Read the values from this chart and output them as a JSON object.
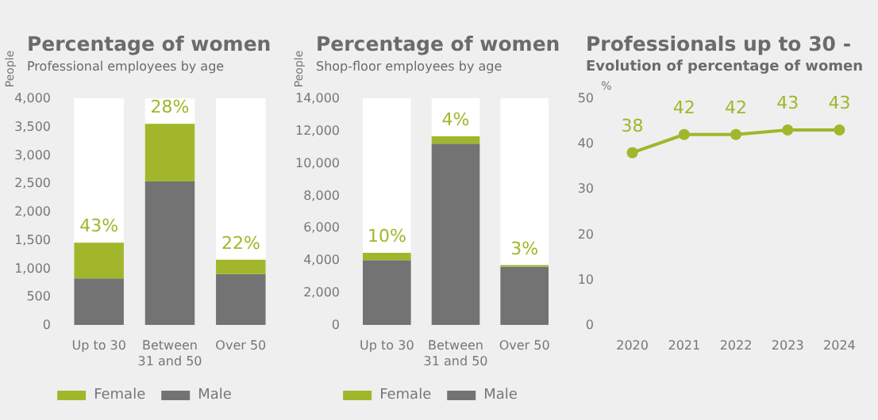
{
  "chart_data": [
    {
      "type": "bar",
      "title": "Percentage of women",
      "subtitle": "Professional employees by age",
      "ylabel": "People",
      "categories": [
        "Up to 30",
        "Between\n31 and 50",
        "Over 50"
      ],
      "stacked": true,
      "series": [
        {
          "name": "Male",
          "color": "#737373",
          "values": [
            820,
            2530,
            900
          ]
        },
        {
          "name": "Female",
          "color": "#a2b62b",
          "values": [
            630,
            1020,
            250
          ]
        }
      ],
      "ylim": [
        0,
        4000
      ],
      "yticks": [
        0,
        500,
        {
          "value": 1000,
          "label": "1,000"
        },
        {
          "value": 1500,
          "label": "1,500"
        },
        {
          "value": 2000,
          "label": "2,000"
        },
        {
          "value": 2500,
          "label": "2,500"
        },
        {
          "value": 3000,
          "label": "3,000"
        },
        {
          "value": 3500,
          "label": "3,500"
        },
        {
          "value": 4000,
          "label": "4,000"
        }
      ],
      "annotations": [
        {
          "text": "43%",
          "x": "Up to 30",
          "y": 1450
        },
        {
          "text": "28%",
          "x": "Between\n31 and 50",
          "y": 3550
        },
        {
          "text": "22%",
          "x": "Over 50",
          "y": 1150
        }
      ],
      "legend": "bottom",
      "grid": false
    },
    {
      "type": "bar",
      "title": "Percentage of women",
      "subtitle": "Shop-floor employees by age",
      "ylabel": "People",
      "categories": [
        "Up to 30",
        "Between\n31 and 50",
        "Over 50"
      ],
      "stacked": true,
      "series": [
        {
          "name": "Male",
          "color": "#737373",
          "values": [
            4000,
            11200,
            3600
          ]
        },
        {
          "name": "Female",
          "color": "#a2b62b",
          "values": [
            450,
            450,
            100
          ]
        }
      ],
      "ylim": [
        0,
        14000
      ],
      "yticks": [
        0,
        {
          "value": 2000,
          "label": "2,000"
        },
        {
          "value": 4000,
          "label": "4,000"
        },
        {
          "value": 6000,
          "label": "6,000"
        },
        {
          "value": 8000,
          "label": "8,000"
        },
        {
          "value": 10000,
          "label": "10,000"
        },
        {
          "value": 12000,
          "label": "12,000"
        },
        {
          "value": 14000,
          "label": "14,000"
        }
      ],
      "annotations": [
        {
          "text": "10%",
          "x": "Up to 30",
          "y": 4450
        },
        {
          "text": "4%",
          "x": "Between\n31 and 50",
          "y": 11650
        },
        {
          "text": "3%",
          "x": "Over 50",
          "y": 3650
        }
      ],
      "legend": "bottom",
      "grid": false
    },
    {
      "type": "line",
      "title": "Professionals up to 30 -",
      "subtitle": "Evolution of percentage of women",
      "ylabel": "%",
      "categories": [
        "2020",
        "2021",
        "2022",
        "2023",
        "2024"
      ],
      "series": [
        {
          "color": "#a2b62b",
          "values": [
            38,
            42,
            42,
            43,
            43
          ]
        }
      ],
      "ylim": [
        0,
        50
      ],
      "yticks": [
        0,
        10,
        20,
        30,
        40,
        50
      ],
      "data_labels": true,
      "marker": "circle",
      "line_style": "solid",
      "legend": false,
      "grid": false
    }
  ]
}
